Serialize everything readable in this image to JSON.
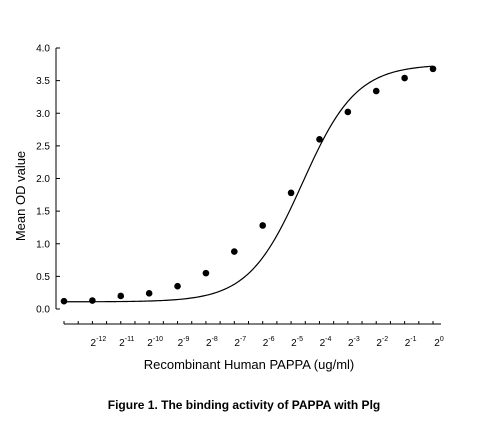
{
  "caption": "Figure 1. The binding activity of PAPPA with Plg",
  "chart_data": {
    "type": "scatter",
    "title": "",
    "xlabel": "Recombinant Human PAPPA (ug/ml)",
    "ylabel": "Mean OD value",
    "x_scale": "log2",
    "ylim": [
      0,
      4.0
    ],
    "y_ticks": [
      "0.0",
      "0.5",
      "1.0",
      "1.5",
      "2.0",
      "2.5",
      "3.0",
      "3.5",
      "4.0"
    ],
    "x_ticks": [
      {
        "base": "2",
        "exp": "-12"
      },
      {
        "base": "2",
        "exp": "-11"
      },
      {
        "base": "2",
        "exp": "-10"
      },
      {
        "base": "2",
        "exp": "-9"
      },
      {
        "base": "2",
        "exp": "-8"
      },
      {
        "base": "2",
        "exp": "-7"
      },
      {
        "base": "2",
        "exp": "-6"
      },
      {
        "base": "2",
        "exp": "-5"
      },
      {
        "base": "2",
        "exp": "-4"
      },
      {
        "base": "2",
        "exp": "-3"
      },
      {
        "base": "2",
        "exp": "-2"
      },
      {
        "base": "2",
        "exp": "-1"
      },
      {
        "base": "2",
        "exp": "0"
      }
    ],
    "x_log2": [
      -13,
      -12,
      -11,
      -10,
      -9,
      -8,
      -7,
      -6,
      -5,
      -4,
      -3,
      -2,
      -1,
      0
    ],
    "y": [
      0.12,
      0.13,
      0.2,
      0.24,
      0.35,
      0.55,
      0.88,
      1.28,
      1.78,
      2.6,
      3.02,
      3.34,
      3.54,
      3.68
    ],
    "fit_curve": true,
    "grid": false,
    "legend": "none",
    "colors": {
      "marker": "#000000",
      "line": "#000000",
      "axis": "#000000"
    }
  }
}
